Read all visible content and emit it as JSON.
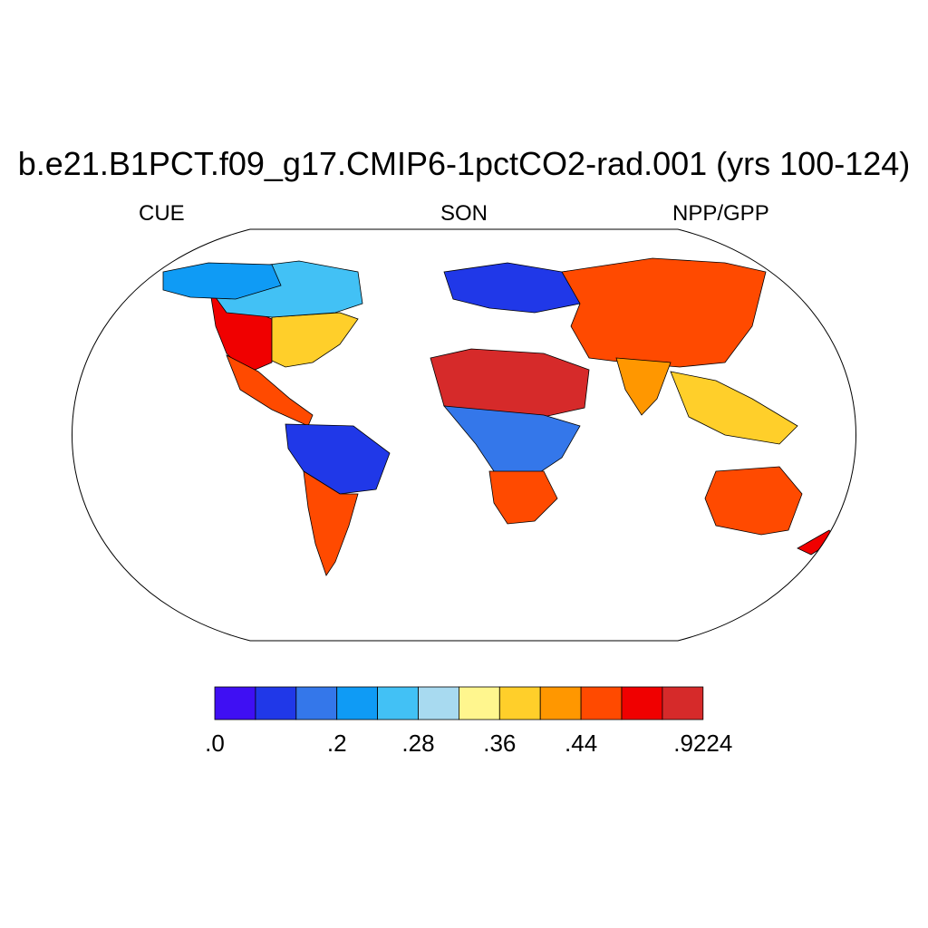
{
  "title": "b.e21.B1PCT.f09_g17.CMIP6-1pctCO2-rad.001 (yrs 100-124)",
  "subtitle_left": "CUE",
  "subtitle_center": "SON",
  "subtitle_right": "NPP/GPP",
  "colorbar": {
    "colors": [
      "#3f0ff3",
      "#2038e8",
      "#3477ea",
      "#0f9bf5",
      "#42c1f5",
      "#a8daf0",
      "#fff68e",
      "#ffcf2a",
      "#ff9700",
      "#ff4a00",
      "#f00000",
      "#d62a2a"
    ],
    "labels": [
      {
        "text": ".0",
        "boundary": 0
      },
      {
        "text": ".2",
        "boundary": 3
      },
      {
        "text": ".28",
        "boundary": 5
      },
      {
        "text": ".36",
        "boundary": 7
      },
      {
        "text": ".44",
        "boundary": 9
      },
      {
        "text": ".9224",
        "boundary": 12
      }
    ]
  },
  "map_regions": [
    {
      "name": "north-america-west",
      "color": "#f00000"
    },
    {
      "name": "north-america-east",
      "color": "#ffcf2a"
    },
    {
      "name": "canada-boreal",
      "color": "#42c1f5"
    },
    {
      "name": "alaska",
      "color": "#0f9bf5"
    },
    {
      "name": "central-america",
      "color": "#ff4a00"
    },
    {
      "name": "amazon",
      "color": "#2038e8"
    },
    {
      "name": "south-america-south",
      "color": "#ff4a00"
    },
    {
      "name": "africa-sahel",
      "color": "#d62a2a"
    },
    {
      "name": "central-africa",
      "color": "#3477ea"
    },
    {
      "name": "southern-africa",
      "color": "#ff4a00"
    },
    {
      "name": "europe-north",
      "color": "#2038e8"
    },
    {
      "name": "asia",
      "color": "#ff4a00"
    },
    {
      "name": "india",
      "color": "#ff9700"
    },
    {
      "name": "southeast-asia",
      "color": "#ffcf2a"
    },
    {
      "name": "australia",
      "color": "#ff4a00"
    },
    {
      "name": "new-zealand",
      "color": "#f00000"
    }
  ]
}
